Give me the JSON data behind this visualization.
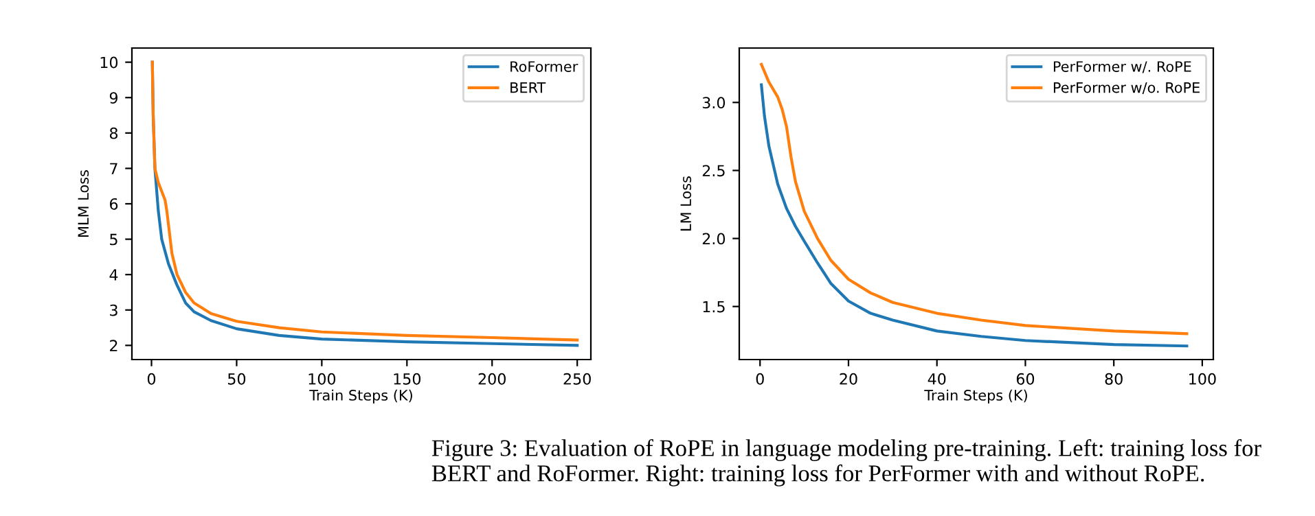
{
  "chart_data": [
    {
      "type": "line",
      "xlabel": "Train Steps (K)",
      "ylabel": "MLM Loss",
      "xlim": [
        -11.5,
        258
      ],
      "ylim": [
        1.6,
        10.4
      ],
      "xticks": [
        0,
        50,
        100,
        150,
        200,
        250
      ],
      "yticks": [
        2,
        3,
        4,
        5,
        6,
        7,
        8,
        9,
        10
      ],
      "legend": "top right",
      "grid": false,
      "series": [
        {
          "name": "RoFormer",
          "color": "#1f77b4",
          "x": [
            0.5,
            1,
            2,
            4,
            6,
            10,
            15,
            20,
            25,
            35,
            50,
            75,
            100,
            150,
            200,
            250
          ],
          "values": [
            10,
            8.5,
            7,
            5.8,
            5,
            4.3,
            3.7,
            3.2,
            2.95,
            2.7,
            2.47,
            2.28,
            2.18,
            2.1,
            2.05,
            2.0
          ]
        },
        {
          "name": "BERT",
          "color": "#ff7f0e",
          "x": [
            0.5,
            1,
            2,
            4,
            8,
            9,
            10,
            12,
            15,
            20,
            25,
            35,
            50,
            75,
            100,
            150,
            200,
            250
          ],
          "values": [
            10,
            8.5,
            7,
            6.6,
            6.1,
            5.8,
            5.4,
            4.6,
            4.0,
            3.5,
            3.2,
            2.9,
            2.68,
            2.5,
            2.38,
            2.28,
            2.22,
            2.15
          ]
        }
      ],
      "annotations": [
        "Figure 3: Evaluation of RoPE in language modeling pre-training. Left: training loss for BERT and RoFormer. Right: training loss for PerFormer with and without RoPE."
      ]
    },
    {
      "type": "line",
      "xlabel": "Train Steps (K)",
      "ylabel": "LM Loss",
      "xlim": [
        -4.7,
        102.5
      ],
      "ylim": [
        1.11,
        3.4
      ],
      "xticks": [
        0,
        20,
        40,
        60,
        80,
        100
      ],
      "yticks": [
        1.5,
        {
          "value": 2,
          "label": "2.0"
        },
        2.5,
        {
          "value": 3,
          "label": "3.0"
        }
      ],
      "legend": "top right",
      "grid": false,
      "series": [
        {
          "name": "PerFormer w/. RoPE",
          "color": "#1f77b4",
          "x": [
            0.3,
            1,
            2,
            4,
            6,
            8,
            10,
            13,
            16,
            20,
            25,
            30,
            40,
            50,
            60,
            80,
            96.5
          ],
          "values": [
            3.13,
            2.9,
            2.68,
            2.4,
            2.22,
            2.09,
            1.98,
            1.82,
            1.67,
            1.54,
            1.45,
            1.4,
            1.32,
            1.28,
            1.25,
            1.22,
            1.21
          ]
        },
        {
          "name": "PerFormer w/o. RoPE",
          "color": "#ff7f0e",
          "x": [
            0.3,
            2,
            4,
            5,
            6,
            7,
            8,
            10,
            13,
            16,
            20,
            25,
            30,
            40,
            50,
            60,
            80,
            96.5
          ],
          "values": [
            3.28,
            3.15,
            3.04,
            2.95,
            2.82,
            2.6,
            2.42,
            2.2,
            2.0,
            1.84,
            1.7,
            1.6,
            1.53,
            1.45,
            1.4,
            1.36,
            1.32,
            1.3
          ]
        }
      ]
    }
  ]
}
